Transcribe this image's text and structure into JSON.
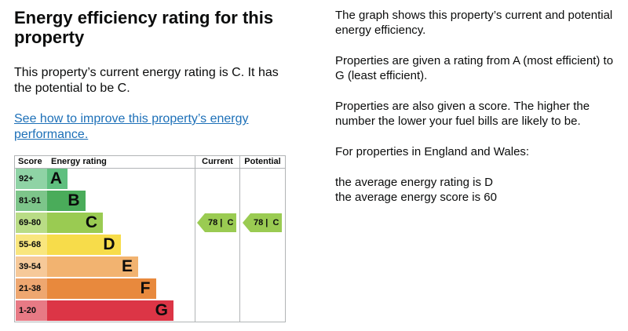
{
  "heading": "Energy efficiency rating for this property",
  "intro": "This property’s current energy rating is C. It has the potential to be C.",
  "improve_link": "See how to improve this property’s energy performance.",
  "chart_data": {
    "type": "table",
    "headers": {
      "score": "Score",
      "rating": "Energy rating",
      "current": "Current",
      "potential": "Potential"
    },
    "bands": [
      {
        "score": "92+",
        "letter": "A",
        "color": "#5fbf7f",
        "score_color": "#8fd3a5"
      },
      {
        "score": "81-91",
        "letter": "B",
        "color": "#4aac5a",
        "score_color": "#7dc58a"
      },
      {
        "score": "69-80",
        "letter": "C",
        "color": "#9acb52",
        "score_color": "#b9dc86"
      },
      {
        "score": "55-68",
        "letter": "D",
        "color": "#f7dc4a",
        "score_color": "#f9e67e"
      },
      {
        "score": "39-54",
        "letter": "E",
        "color": "#f2b370",
        "score_color": "#f6c999"
      },
      {
        "score": "21-38",
        "letter": "F",
        "color": "#e8893d",
        "score_color": "#eea770"
      },
      {
        "score": "1-20",
        "letter": "G",
        "color": "#dc3546",
        "score_color": "#e77a85"
      }
    ],
    "current": {
      "score": "78",
      "letter": "C",
      "label": "78 |  C",
      "band_index": 2
    },
    "potential": {
      "score": "78",
      "letter": "C",
      "label": "78 |  C",
      "band_index": 2
    }
  },
  "right": {
    "p1": "The graph shows this property’s current and potential energy efficiency.",
    "p2": "Properties are given a rating from A (most efficient) to G (least efficient).",
    "p3": "Properties are also given a score. The higher the number the lower your fuel bills are likely to be.",
    "p4": "For properties in England and Wales:",
    "p5a": "the average energy rating is D",
    "p5b": "the average energy score is 60"
  }
}
